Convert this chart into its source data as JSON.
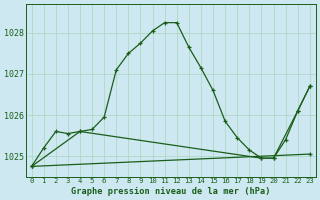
{
  "title": "Graphe pression niveau de la mer (hPa)",
  "background_color": "#cde8f0",
  "grid_color": "#b0d8c8",
  "line_color": "#1a5e1a",
  "xlim": [
    -0.5,
    23.5
  ],
  "ylim": [
    1024.5,
    1028.7
  ],
  "yticks": [
    1025,
    1026,
    1027,
    1028
  ],
  "xtick_labels": [
    "0",
    "1",
    "2",
    "3",
    "4",
    "5",
    "6",
    "7",
    "8",
    "9",
    "10",
    "11",
    "12",
    "13",
    "14",
    "15",
    "16",
    "17",
    "18",
    "19",
    "20",
    "21",
    "22",
    "23"
  ],
  "series1_x": [
    0,
    1,
    2,
    3,
    4,
    5,
    6,
    7,
    8,
    9,
    10,
    11,
    12,
    13,
    14,
    15,
    16,
    17,
    18,
    19,
    20,
    21,
    22,
    23
  ],
  "series1_y": [
    1024.75,
    1025.2,
    1025.6,
    1025.55,
    1025.6,
    1025.65,
    1025.95,
    1027.1,
    1027.5,
    1027.75,
    1028.05,
    1028.25,
    1028.25,
    1027.65,
    1027.15,
    1026.6,
    1025.85,
    1025.45,
    1025.15,
    1024.95,
    1024.95,
    1025.4,
    1026.1,
    1026.7
  ],
  "series2_x": [
    0,
    4,
    19,
    20,
    22,
    23
  ],
  "series2_y": [
    1024.75,
    1025.6,
    1024.95,
    1024.95,
    1026.1,
    1026.7
  ],
  "series3_x": [
    0,
    23
  ],
  "series3_y": [
    1024.75,
    1025.05
  ]
}
